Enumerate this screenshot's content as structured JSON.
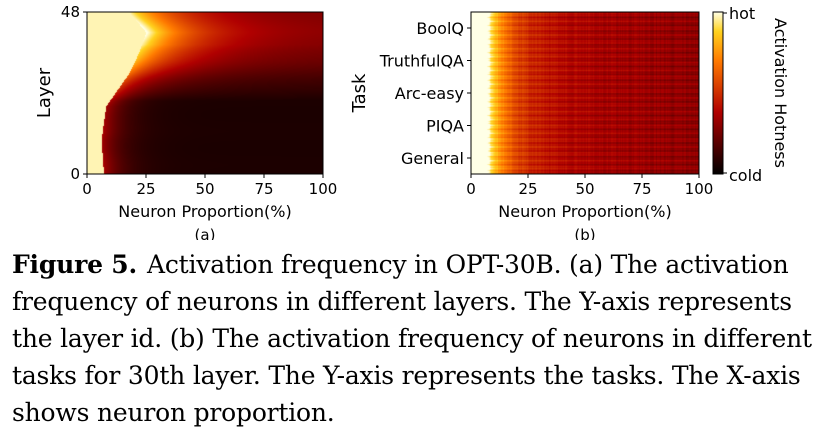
{
  "figure": {
    "label": "Figure 5.",
    "caption": "Activation frequency in OPT-30B. (a) The activation frequency of neurons in different layers. The Y-axis represents the layer id. (b) The activation frequency of neurons in different tasks for 30th layer. The Y-axis represents the tasks. The X-axis shows neuron proportion."
  },
  "chart_data": [
    {
      "type": "heatmap",
      "panel": "(a)",
      "xlabel": "Neuron Proportion(%)",
      "ylabel": "Layer",
      "xlim": [
        0,
        100
      ],
      "ylim": [
        0,
        48
      ],
      "xticks": [
        "0",
        "25",
        "50",
        "75",
        "100"
      ],
      "yticks": [
        "0",
        "48"
      ],
      "description_of_pattern_points": {
        "hot_neuron_proportion_by_layer": [
          {
            "layer": 0,
            "proportion": 7
          },
          {
            "layer": 10,
            "proportion": 6
          },
          {
            "layer": 20,
            "proportion": 8
          },
          {
            "layer": 24,
            "proportion": 12
          },
          {
            "layer": 30,
            "proportion": 18
          },
          {
            "layer": 36,
            "proportion": 22
          },
          {
            "layer": 42,
            "proportion": 25
          },
          {
            "layer": 48,
            "proportion": 18
          }
        ]
      }
    },
    {
      "type": "heatmap",
      "panel": "(b)",
      "xlabel": "Neuron Proportion(%)",
      "ylabel": "Task",
      "xlim": [
        0,
        100
      ],
      "xticks": [
        "0",
        "25",
        "50",
        "75",
        "100"
      ],
      "categories": [
        "BoolQ",
        "TruthfulQA",
        "Arc-easy",
        "PIQA",
        "General"
      ],
      "colorbar": {
        "label": "Activation Hotness",
        "top": "hot",
        "bottom": "cold"
      }
    }
  ],
  "colors": {
    "cold": "#000000",
    "warm": "#b30000",
    "hot": "#ff8c00",
    "hottest": "#ffffc8"
  }
}
